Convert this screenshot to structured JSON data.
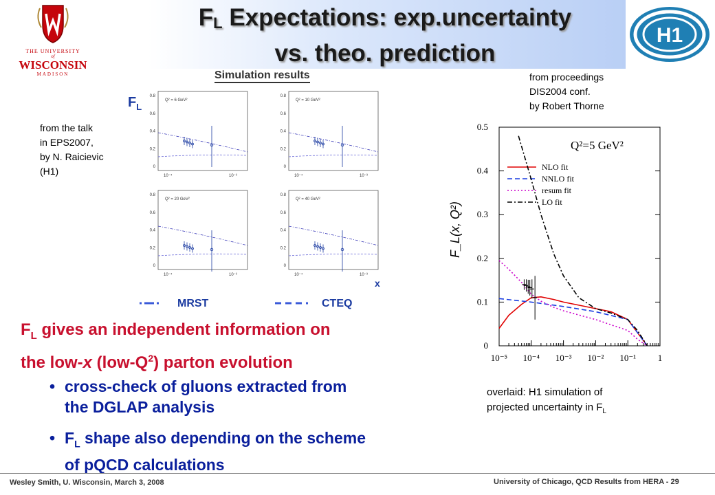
{
  "slide": {
    "title_line1_pre": "F",
    "title_line1_sub": "L",
    "title_line1_post": " Expectations: exp.uncertainty",
    "title_line2": "vs. theo. prediction"
  },
  "logo_uw": {
    "line1": "THE UNIVERSITY",
    "line2": "of",
    "line3": "WISCONSIN",
    "line4": "MADISON"
  },
  "logo_h1": {
    "text": "H1"
  },
  "simulation": {
    "title": "Simulation results",
    "fl_label": "F",
    "fl_sub": "L",
    "panels": [
      {
        "q2": "Q² = 6 GeV²"
      },
      {
        "q2": "Q² = 10 GeV²"
      },
      {
        "q2": "Q² = 20 GeV²"
      },
      {
        "q2": "Q² = 40 GeV²"
      }
    ],
    "y_ticks": [
      "0.8",
      "0.6",
      "0.4",
      "0.2",
      "0"
    ],
    "x_ticks": [
      "10⁻⁴",
      "10⁻³"
    ],
    "x_axis": "x",
    "legend_mrst": "MRST",
    "legend_cteq": "CTEQ"
  },
  "note_talk": {
    "l1": "from the talk",
    "l2": "in EPS2007,",
    "l3": "by N. Raicievic",
    "l4": "(H1)"
  },
  "note_proc": {
    "l1": "from proceedings",
    "l2": "DIS2004 conf.",
    "l3": "by Robert Thorne"
  },
  "note_overlaid": {
    "l1": "overlaid: H1 simulation of",
    "l2": "projected uncertainty in F",
    "l2_sub": "L"
  },
  "main_text": {
    "l1_pre": "F",
    "l1_sub": "L",
    "l1_post": " gives an independent information on",
    "l2_pre": "the low-",
    "l2_x": "x",
    "l2_mid": " (low-Q",
    "l2_sup": "2",
    "l2_post": ") parton evolution"
  },
  "bullets": [
    {
      "dot": "•",
      "l1": "cross-check of gluons extracted from",
      "l2": "the DGLAP analysis"
    },
    {
      "dot": "•",
      "pre": "F",
      "sub": "L",
      "l1": " shape also depending on the scheme",
      "l2": "of pQCD calculations"
    }
  ],
  "footer": {
    "left": "Wesley Smith, U. Wisconsin, March 3, 2008",
    "right": "University of Chicago, QCD Results from HERA -  29"
  },
  "chart_data": {
    "type": "line",
    "title": "Q²=5 GeV²",
    "xlabel": "",
    "ylabel": "F_L(x, Q²)",
    "x_scale": "log",
    "xlim": [
      1e-05,
      1
    ],
    "ylim": [
      0,
      0.5
    ],
    "x_ticks": [
      "10⁻⁵",
      "10⁻⁴",
      "10⁻³",
      "10⁻²",
      "10⁻¹",
      "1"
    ],
    "y_ticks": [
      "0",
      "0.1",
      "0.2",
      "0.3",
      "0.4",
      "0.5"
    ],
    "legend_placement": "top-right",
    "series": [
      {
        "name": "NLO fit",
        "color": "#e00000",
        "dash": "solid",
        "x": [
          1e-05,
          2e-05,
          5e-05,
          0.0001,
          0.0002,
          0.0005,
          0.001,
          0.003,
          0.01,
          0.03,
          0.1,
          0.2,
          0.4
        ],
        "y": [
          0.04,
          0.07,
          0.095,
          0.11,
          0.112,
          0.106,
          0.1,
          0.093,
          0.085,
          0.078,
          0.06,
          0.03,
          0
        ]
      },
      {
        "name": "NNLO fit",
        "color": "#1a3de0",
        "dash": "dash",
        "x": [
          1e-05,
          0.0001,
          0.001,
          0.01,
          0.1,
          0.2,
          0.4
        ],
        "y": [
          0.108,
          0.1,
          0.09,
          0.078,
          0.06,
          0.03,
          0
        ]
      },
      {
        "name": "resum fit",
        "color": "#cc00cc",
        "dash": "dot",
        "x": [
          1e-05,
          2e-05,
          5e-05,
          0.0001,
          0.0002,
          0.0005,
          0.001,
          0.01,
          0.1,
          0.2,
          0.4
        ],
        "y": [
          0.195,
          0.175,
          0.145,
          0.118,
          0.102,
          0.088,
          0.08,
          0.06,
          0.035,
          0.015,
          0
        ]
      },
      {
        "name": "LO fit",
        "color": "#000000",
        "dash": "dashdot",
        "x": [
          4e-05,
          0.0001,
          0.0002,
          0.0005,
          0.001,
          0.003,
          0.01,
          0.03,
          0.1,
          0.2,
          0.4
        ],
        "y": [
          0.48,
          0.38,
          0.3,
          0.21,
          0.16,
          0.11,
          0.085,
          0.075,
          0.06,
          0.035,
          0
        ]
      }
    ],
    "overlay_points": {
      "x": [
        6e-05,
        7e-05,
        8e-05,
        9e-05,
        0.000105,
        0.00013
      ],
      "y": [
        0.14,
        0.138,
        0.135,
        0.133,
        0.13,
        0.11
      ],
      "err": [
        0.012,
        0.014,
        0.016,
        0.018,
        0.022,
        0.05
      ]
    }
  }
}
